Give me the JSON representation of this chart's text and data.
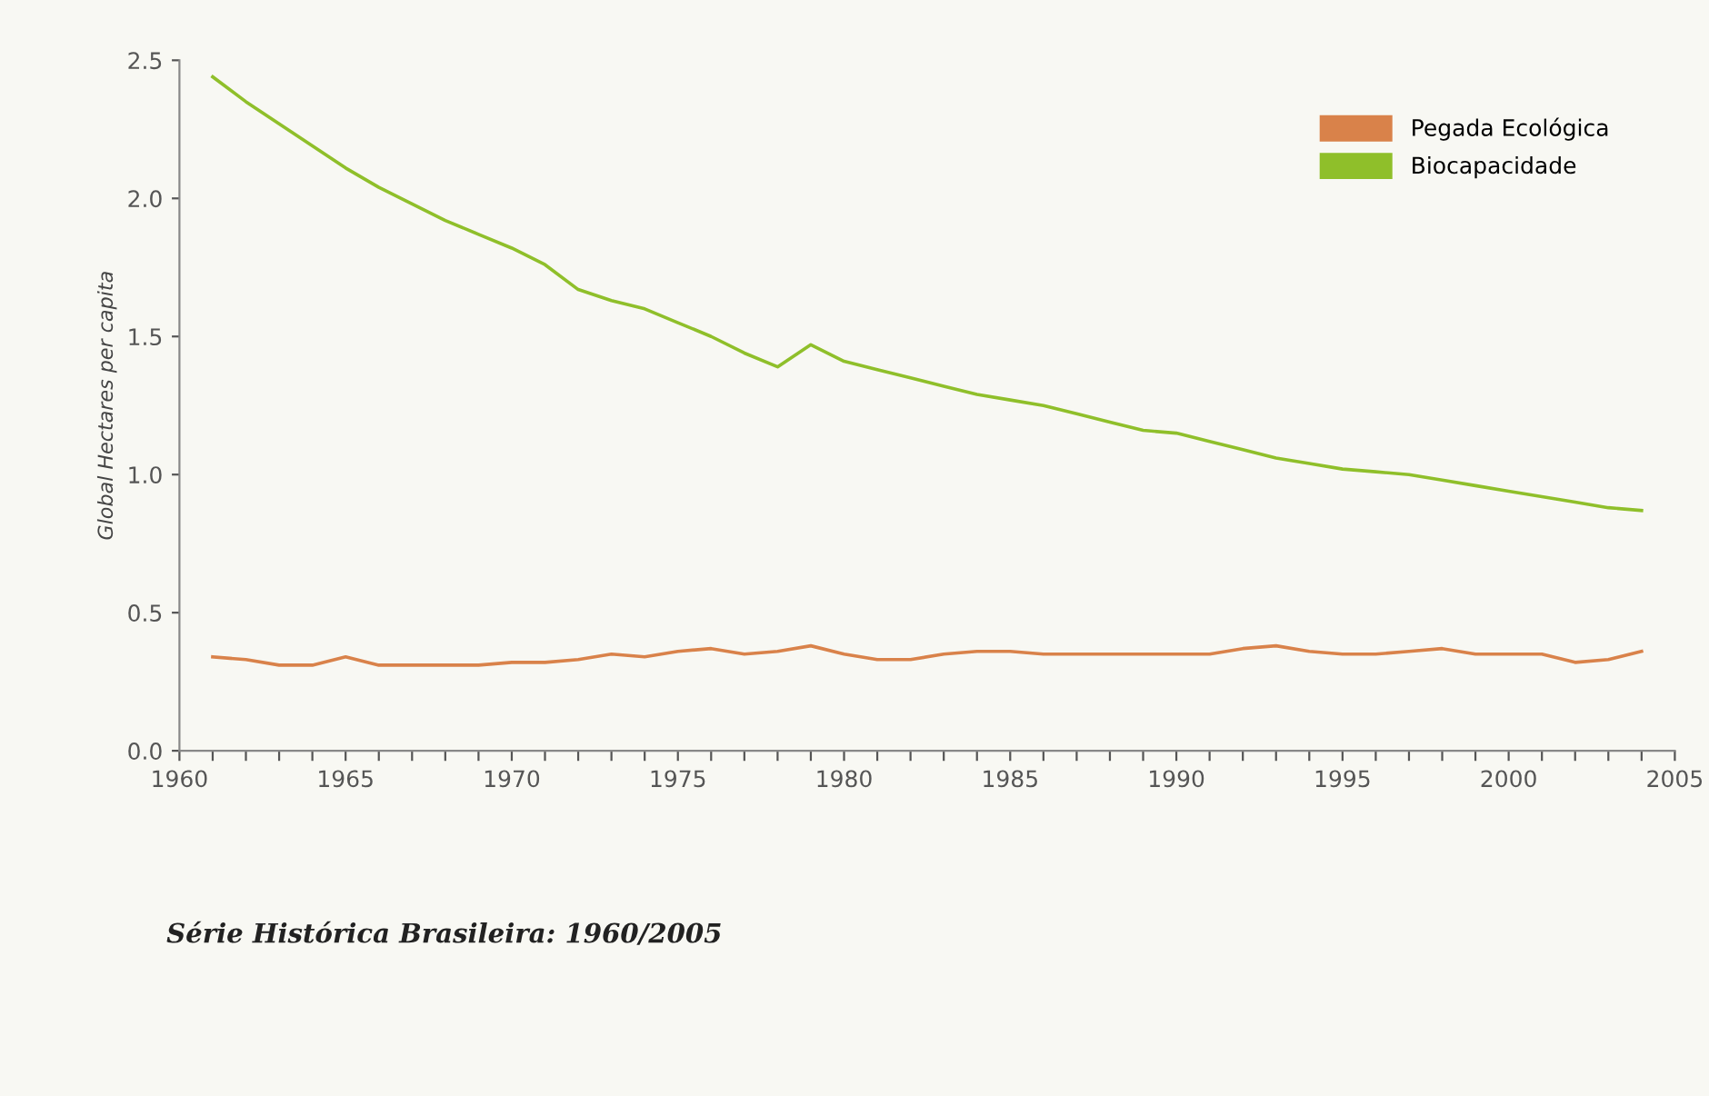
{
  "chart_data": {
    "type": "line",
    "ylabel": "Global Hectares per capita",
    "x": [
      1961,
      1962,
      1963,
      1964,
      1965,
      1966,
      1967,
      1968,
      1969,
      1970,
      1971,
      1972,
      1973,
      1974,
      1975,
      1976,
      1977,
      1978,
      1979,
      1980,
      1981,
      1982,
      1983,
      1984,
      1985,
      1986,
      1987,
      1988,
      1989,
      1990,
      1991,
      1992,
      1993,
      1994,
      1995,
      1996,
      1997,
      1998,
      1999,
      2000,
      2001,
      2002,
      2003,
      2004
    ],
    "series": [
      {
        "name": "Pegada Ecológica",
        "color": "#d9824a",
        "values": [
          0.34,
          0.33,
          0.31,
          0.31,
          0.34,
          0.31,
          0.31,
          0.31,
          0.31,
          0.32,
          0.32,
          0.33,
          0.35,
          0.34,
          0.36,
          0.37,
          0.35,
          0.36,
          0.38,
          0.35,
          0.33,
          0.33,
          0.35,
          0.36,
          0.36,
          0.35,
          0.35,
          0.35,
          0.35,
          0.35,
          0.35,
          0.37,
          0.38,
          0.36,
          0.35,
          0.35,
          0.36,
          0.37,
          0.35,
          0.35,
          0.35,
          0.32,
          0.33,
          0.36
        ]
      },
      {
        "name": "Biocapacidade",
        "color": "#8fbf2a",
        "values": [
          2.44,
          2.35,
          2.27,
          2.19,
          2.11,
          2.04,
          1.98,
          1.92,
          1.87,
          1.82,
          1.76,
          1.67,
          1.63,
          1.6,
          1.55,
          1.5,
          1.44,
          1.39,
          1.47,
          1.41,
          1.38,
          1.35,
          1.32,
          1.29,
          1.27,
          1.25,
          1.22,
          1.19,
          1.16,
          1.15,
          1.12,
          1.09,
          1.06,
          1.04,
          1.02,
          1.01,
          1.0,
          0.98,
          0.96,
          0.94,
          0.92,
          0.9,
          0.88,
          0.87
        ]
      }
    ],
    "xlim": [
      1960,
      2005
    ],
    "xticks": [
      1960,
      {
        "value": 1961,
        "label": null
      },
      {
        "value": 1962,
        "label": null
      },
      {
        "value": 1963,
        "label": null
      },
      {
        "value": 1964,
        "label": null
      },
      1965,
      {
        "value": 1966,
        "label": null
      },
      {
        "value": 1967,
        "label": null
      },
      {
        "value": 1968,
        "label": null
      },
      {
        "value": 1969,
        "label": null
      },
      1970,
      {
        "value": 1971,
        "label": null
      },
      {
        "value": 1972,
        "label": null
      },
      {
        "value": 1973,
        "label": null
      },
      {
        "value": 1974,
        "label": null
      },
      1975,
      {
        "value": 1976,
        "label": null
      },
      {
        "value": 1977,
        "label": null
      },
      {
        "value": 1978,
        "label": null
      },
      {
        "value": 1979,
        "label": null
      },
      1980,
      {
        "value": 1981,
        "label": null
      },
      {
        "value": 1982,
        "label": null
      },
      {
        "value": 1983,
        "label": null
      },
      {
        "value": 1984,
        "label": null
      },
      1985,
      {
        "value": 1986,
        "label": null
      },
      {
        "value": 1987,
        "label": null
      },
      {
        "value": 1988,
        "label": null
      },
      {
        "value": 1989,
        "label": null
      },
      1990,
      {
        "value": 1991,
        "label": null
      },
      {
        "value": 1992,
        "label": null
      },
      {
        "value": 1993,
        "label": null
      },
      {
        "value": 1994,
        "label": null
      },
      1995,
      {
        "value": 1996,
        "label": null
      },
      {
        "value": 1997,
        "label": null
      },
      {
        "value": 1998,
        "label": null
      },
      {
        "value": 1999,
        "label": null
      },
      2000,
      {
        "value": 2001,
        "label": null
      },
      {
        "value": 2002,
        "label": null
      },
      {
        "value": 2003,
        "label": null
      },
      {
        "value": 2004,
        "label": null
      },
      2005
    ],
    "ylim": [
      0,
      2.5
    ],
    "yticks": [
      {
        "value": 0,
        "label": "0.0"
      },
      0.5,
      {
        "value": 1,
        "label": "1.0"
      },
      1.5,
      {
        "value": 2,
        "label": "2.0"
      },
      2.5
    ],
    "grid": false,
    "legend": "top right",
    "annotations": [
      "Série Histórica Brasileira: 1960/2005"
    ]
  }
}
